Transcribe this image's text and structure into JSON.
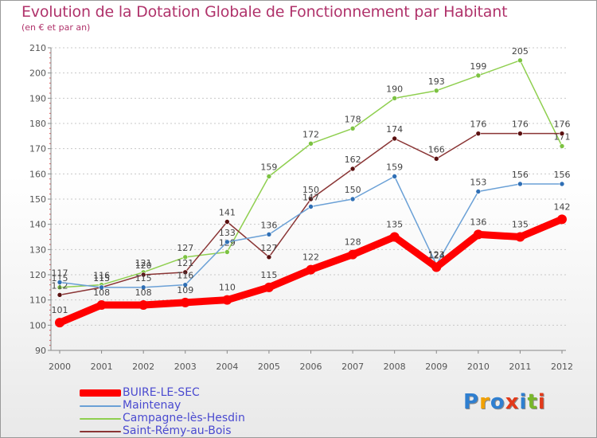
{
  "title": "Evolution de la Dotation Globale de Fonctionnement par Habitant",
  "subtitle": "(en € et par an)",
  "logo": {
    "letters": [
      "P",
      "r",
      "o",
      "x",
      "i",
      "t",
      "i"
    ],
    "colors": [
      "#2f7fd0",
      "#f2a100",
      "#2f7fd0",
      "#e23a1a",
      "#2f7fd0",
      "#78b72a",
      "#e23a1a"
    ]
  },
  "chart_data": {
    "type": "line",
    "title": "Evolution de la Dotation Globale de Fonctionnement par Habitant",
    "xlabel": "",
    "ylabel": "(en € et par an)",
    "ylim": [
      90,
      210
    ],
    "yticks": [
      90,
      100,
      110,
      120,
      130,
      140,
      150,
      160,
      170,
      180,
      190,
      200,
      210
    ],
    "x": [
      "2000",
      "2001",
      "2002",
      "2003",
      "2004",
      "2005",
      "2006",
      "2007",
      "2008",
      "2009",
      "2010",
      "2011",
      "2012"
    ],
    "grid": "horizontal dashed",
    "legend_position": "bottom-left",
    "series": [
      {
        "name": "Campagne-lès-Hesdin",
        "color": "#8fcf4f",
        "point_color": "#7cc242",
        "width": "thin",
        "values": [
          115,
          116,
          121,
          127,
          129,
          159,
          172,
          178,
          190,
          193,
          199,
          205,
          171
        ]
      },
      {
        "name": "Saint-Rémy-au-Bois",
        "color": "#8a3535",
        "point_color": "#5a1010",
        "width": "thin",
        "values": [
          112,
          115,
          120,
          121,
          141,
          127,
          150,
          162,
          174,
          166,
          176,
          176,
          176
        ]
      },
      {
        "name": "Maintenay",
        "color": "#6aa0d6",
        "point_color": "#2f6fb5",
        "width": "thin",
        "values": [
          117,
          115,
          115,
          116,
          133,
          136,
          147,
          150,
          159,
          124,
          153,
          156,
          156
        ]
      },
      {
        "name": "BUIRE-LE-SEC",
        "color": "#ff0000",
        "point_color": "#ff0000",
        "width": "thick",
        "values": [
          101,
          108,
          108,
          109,
          110,
          115,
          122,
          128,
          135,
          123,
          136,
          135,
          142
        ]
      }
    ]
  }
}
